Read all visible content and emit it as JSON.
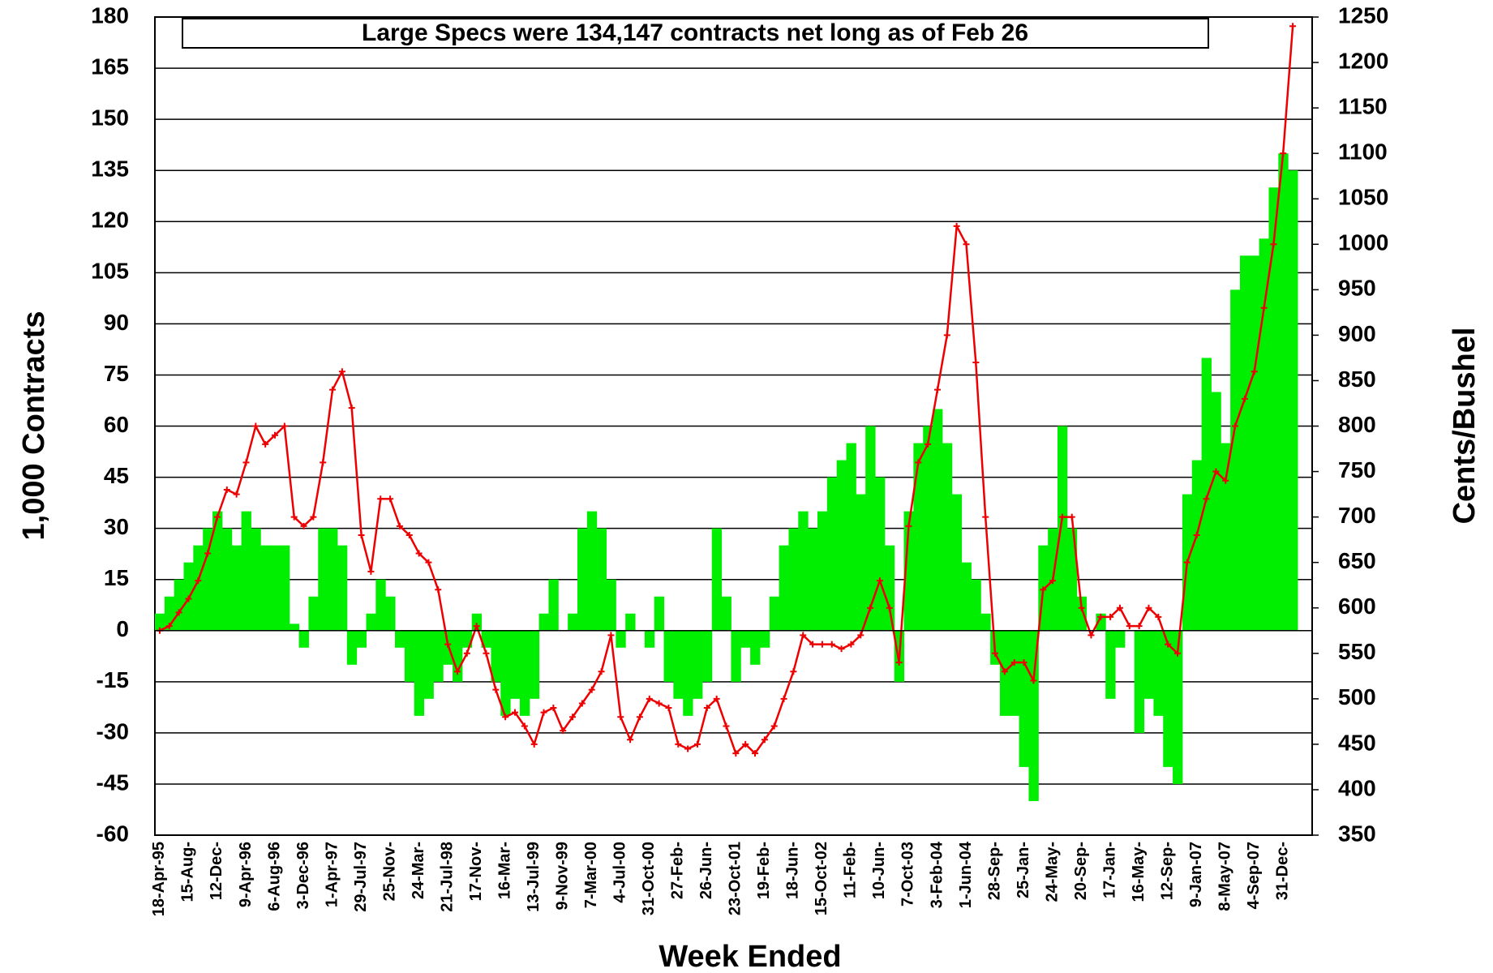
{
  "chart_data": {
    "type": "bar",
    "annotation": "Large Specs were 134,147 contracts net long as of Feb 26",
    "x_label": "Week Ended",
    "y_label": "1,000 Contracts",
    "y2_label": "Cents/Bushel",
    "categories": [
      "18-Apr-95",
      null,
      null,
      "15-Aug-",
      null,
      null,
      "12-Dec-",
      null,
      null,
      "9-Apr-96",
      null,
      null,
      "6-Aug-96",
      null,
      null,
      "3-Dec-96",
      null,
      null,
      "1-Apr-97",
      null,
      null,
      "29-Jul-97",
      null,
      null,
      "25-Nov-",
      null,
      null,
      "24-Mar-",
      null,
      null,
      "21-Jul-98",
      null,
      null,
      "17-Nov-",
      null,
      null,
      "16-Mar-",
      null,
      null,
      "13-Jul-99",
      null,
      null,
      "9-Nov-99",
      null,
      null,
      "7-Mar-00",
      null,
      null,
      "4-Jul-00",
      null,
      null,
      "31-Oct-00",
      null,
      null,
      "27-Feb-",
      null,
      null,
      "26-Jun-",
      null,
      null,
      "23-Oct-01",
      null,
      null,
      "19-Feb-",
      null,
      null,
      "18-Jun-",
      null,
      null,
      "15-Oct-02",
      null,
      null,
      "11-Feb-",
      null,
      null,
      "10-Jun-",
      null,
      null,
      "7-Oct-03",
      null,
      null,
      "3-Feb-04",
      null,
      null,
      "1-Jun-04",
      null,
      null,
      "28-Sep-",
      null,
      null,
      "25-Jan-",
      null,
      null,
      "24-May-",
      null,
      null,
      "20-Sep-",
      null,
      null,
      "17-Jan-",
      null,
      null,
      "16-May-",
      null,
      null,
      "12-Sep-",
      null,
      null,
      "9-Jan-07",
      null,
      null,
      "8-May-07",
      null,
      null,
      "4-Sep-07",
      null,
      null,
      "31-Dec-",
      null
    ],
    "series": [
      {
        "name": "Large Specs Net",
        "type": "bar",
        "color": "#00ee00",
        "axis": "y",
        "values": [
          5,
          10,
          15,
          20,
          25,
          30,
          35,
          30,
          25,
          35,
          30,
          25,
          25,
          25,
          2,
          -5,
          10,
          30,
          30,
          25,
          -10,
          -5,
          5,
          15,
          10,
          -5,
          -15,
          -25,
          -20,
          -15,
          -10,
          -15,
          -5,
          5,
          -5,
          -15,
          -25,
          -20,
          -25,
          -20,
          5,
          15,
          0,
          5,
          30,
          35,
          30,
          15,
          -5,
          5,
          0,
          -5,
          10,
          -15,
          -20,
          -25,
          -20,
          -15,
          30,
          10,
          -15,
          -5,
          -10,
          -5,
          10,
          25,
          30,
          35,
          30,
          35,
          45,
          50,
          55,
          40,
          60,
          45,
          25,
          -15,
          35,
          55,
          60,
          65,
          55,
          40,
          20,
          15,
          5,
          -10,
          -25,
          -25,
          -40,
          -50,
          25,
          30,
          60,
          30,
          10,
          0,
          5,
          -20,
          -5,
          0,
          -30,
          -20,
          -25,
          -40,
          -45,
          40,
          50,
          80,
          70,
          55,
          100,
          110,
          110,
          115,
          130,
          140,
          135
        ]
      },
      {
        "name": "Price",
        "type": "line",
        "color": "#ee0000",
        "axis": "y2",
        "values": [
          575,
          580,
          595,
          610,
          630,
          660,
          700,
          730,
          725,
          760,
          800,
          780,
          790,
          800,
          700,
          690,
          700,
          760,
          840,
          860,
          820,
          680,
          640,
          720,
          720,
          690,
          680,
          660,
          650,
          620,
          560,
          530,
          550,
          580,
          550,
          510,
          480,
          485,
          470,
          450,
          485,
          490,
          465,
          480,
          495,
          510,
          530,
          570,
          480,
          455,
          480,
          500,
          495,
          490,
          450,
          445,
          450,
          490,
          500,
          470,
          440,
          450,
          440,
          455,
          470,
          500,
          530,
          570,
          560,
          560,
          560,
          555,
          560,
          570,
          600,
          630,
          600,
          540,
          690,
          760,
          780,
          840,
          900,
          1020,
          1000,
          870,
          700,
          550,
          530,
          540,
          540,
          520,
          620,
          630,
          700,
          700,
          600,
          570,
          590,
          590,
          600,
          580,
          580,
          600,
          590,
          560,
          550,
          650,
          680,
          720,
          750,
          740,
          800,
          830,
          860,
          930,
          1000,
          1100,
          1240
        ]
      }
    ],
    "ylim": [
      -60,
      180
    ],
    "yticks": [
      -60,
      -45,
      -30,
      -15,
      0,
      15,
      30,
      45,
      60,
      75,
      90,
      105,
      120,
      135,
      150,
      165,
      180
    ],
    "y2lim": [
      350,
      1250
    ],
    "y2ticks": [
      350,
      400,
      450,
      500,
      550,
      600,
      650,
      700,
      750,
      800,
      850,
      900,
      950,
      1000,
      1050,
      1100,
      1150,
      1200,
      1250
    ],
    "grid": true
  }
}
